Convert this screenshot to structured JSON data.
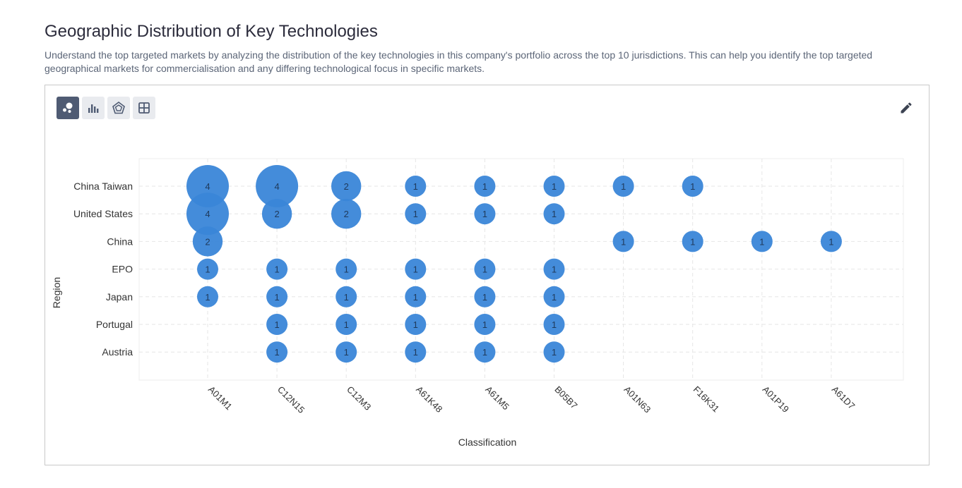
{
  "header": {
    "title": "Geographic Distribution of Key Technologies",
    "description": "Understand the top targeted markets by analyzing the distribution of the key technologies in this company's portfolio across the top 10 jurisdictions. This can help you identify the top targeted geographical markets for commercialisation and any differing technological focus in specific markets."
  },
  "toolbar": {
    "views": [
      {
        "icon": "bubble-chart-icon",
        "active": true
      },
      {
        "icon": "bar-chart-icon",
        "active": false
      },
      {
        "icon": "radar-chart-icon",
        "active": false
      },
      {
        "icon": "table-grid-icon",
        "active": false
      }
    ],
    "edit_icon": "pencil-icon"
  },
  "colors": {
    "bubble": "#3a86d8",
    "bubble_text": "#1f3a5c",
    "grid": "#e6e6e6",
    "active_button": "#4f5b73"
  },
  "chart_data": {
    "type": "scatter",
    "subtype": "bubble",
    "xlabel": "Classification",
    "ylabel": "Region",
    "grid": true,
    "categories_x": [
      "A01M1",
      "C12N15",
      "C12M3",
      "A61K48",
      "A61M5",
      "B05B7",
      "A01N63",
      "F16K31",
      "A01P19",
      "A61D7"
    ],
    "categories_y": [
      "China Taiwan",
      "United States",
      "China",
      "EPO",
      "Japan",
      "Portugal",
      "Austria"
    ],
    "points": [
      {
        "x": "A01M1",
        "y": "China Taiwan",
        "value": 4
      },
      {
        "x": "C12N15",
        "y": "China Taiwan",
        "value": 4
      },
      {
        "x": "C12M3",
        "y": "China Taiwan",
        "value": 2
      },
      {
        "x": "A61K48",
        "y": "China Taiwan",
        "value": 1
      },
      {
        "x": "A61M5",
        "y": "China Taiwan",
        "value": 1
      },
      {
        "x": "B05B7",
        "y": "China Taiwan",
        "value": 1
      },
      {
        "x": "A01N63",
        "y": "China Taiwan",
        "value": 1
      },
      {
        "x": "F16K31",
        "y": "China Taiwan",
        "value": 1
      },
      {
        "x": "A01M1",
        "y": "United States",
        "value": 4
      },
      {
        "x": "C12N15",
        "y": "United States",
        "value": 2
      },
      {
        "x": "C12M3",
        "y": "United States",
        "value": 2
      },
      {
        "x": "A61K48",
        "y": "United States",
        "value": 1
      },
      {
        "x": "A61M5",
        "y": "United States",
        "value": 1
      },
      {
        "x": "B05B7",
        "y": "United States",
        "value": 1
      },
      {
        "x": "A01M1",
        "y": "China",
        "value": 2
      },
      {
        "x": "A01N63",
        "y": "China",
        "value": 1
      },
      {
        "x": "F16K31",
        "y": "China",
        "value": 1
      },
      {
        "x": "A01P19",
        "y": "China",
        "value": 1
      },
      {
        "x": "A61D7",
        "y": "China",
        "value": 1
      },
      {
        "x": "A01M1",
        "y": "EPO",
        "value": 1
      },
      {
        "x": "C12N15",
        "y": "EPO",
        "value": 1
      },
      {
        "x": "C12M3",
        "y": "EPO",
        "value": 1
      },
      {
        "x": "A61K48",
        "y": "EPO",
        "value": 1
      },
      {
        "x": "A61M5",
        "y": "EPO",
        "value": 1
      },
      {
        "x": "B05B7",
        "y": "EPO",
        "value": 1
      },
      {
        "x": "A01M1",
        "y": "Japan",
        "value": 1
      },
      {
        "x": "C12N15",
        "y": "Japan",
        "value": 1
      },
      {
        "x": "C12M3",
        "y": "Japan",
        "value": 1
      },
      {
        "x": "A61K48",
        "y": "Japan",
        "value": 1
      },
      {
        "x": "A61M5",
        "y": "Japan",
        "value": 1
      },
      {
        "x": "B05B7",
        "y": "Japan",
        "value": 1
      },
      {
        "x": "C12N15",
        "y": "Portugal",
        "value": 1
      },
      {
        "x": "C12M3",
        "y": "Portugal",
        "value": 1
      },
      {
        "x": "A61K48",
        "y": "Portugal",
        "value": 1
      },
      {
        "x": "A61M5",
        "y": "Portugal",
        "value": 1
      },
      {
        "x": "B05B7",
        "y": "Portugal",
        "value": 1
      },
      {
        "x": "C12N15",
        "y": "Austria",
        "value": 1
      },
      {
        "x": "C12M3",
        "y": "Austria",
        "value": 1
      },
      {
        "x": "A61K48",
        "y": "Austria",
        "value": 1
      },
      {
        "x": "A61M5",
        "y": "Austria",
        "value": 1
      },
      {
        "x": "B05B7",
        "y": "Austria",
        "value": 1
      }
    ]
  }
}
